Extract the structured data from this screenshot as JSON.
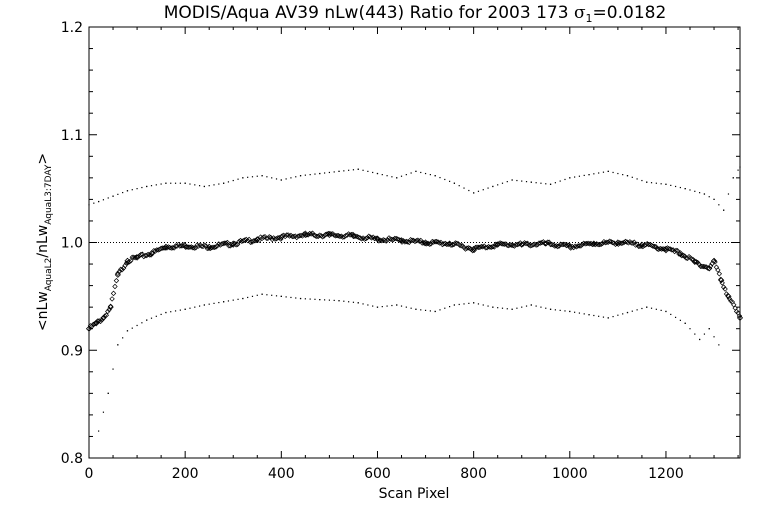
{
  "chart_data": {
    "type": "scatter",
    "title": "MODIS/Aqua AV39 nLw(443) Ratio for 2003 173 σ₁=0.0182",
    "title_parts": {
      "prefix": "MODIS/Aqua AV39 nLw(443) Ratio for 2003 173 ",
      "sigma": "σ",
      "sigma_sub": "1",
      "suffix": "=0.0182"
    },
    "xlabel": "Scan Pixel",
    "ylabel": "<nLw AquaL2/nLw AquaL3:7DAY>",
    "ylabel_parts": {
      "open": "<nLw",
      "sub1": "AquaL2",
      "mid": "/nLw",
      "sub2": "AquaL3:7DAY",
      "close": ">"
    },
    "xlim": [
      0,
      1354
    ],
    "ylim": [
      0.8,
      1.2
    ],
    "x_ticks": [
      "0",
      "200",
      "400",
      "600",
      "800",
      "1000",
      "1200"
    ],
    "y_ticks": [
      "0.8",
      "0.9",
      "1.0",
      "1.1",
      "1.2"
    ],
    "reference_line": 1.0,
    "grid": false,
    "series": [
      {
        "role": "mean",
        "marker": "diamond",
        "x": [
          0,
          15,
          30,
          45,
          60,
          80,
          100,
          130,
          160,
          200,
          250,
          300,
          350,
          400,
          450,
          500,
          550,
          600,
          650,
          700,
          750,
          800,
          850,
          900,
          950,
          1000,
          1050,
          1100,
          1150,
          1200,
          1230,
          1260,
          1290,
          1300,
          1315,
          1330,
          1354
        ],
        "y": [
          0.92,
          0.925,
          0.93,
          0.94,
          0.97,
          0.983,
          0.986,
          0.99,
          0.996,
          0.997,
          0.996,
          0.999,
          1.003,
          1.005,
          1.007,
          1.007,
          1.006,
          1.003,
          1.002,
          1.0,
          0.999,
          0.994,
          0.998,
          0.998,
          0.999,
          0.996,
          0.999,
          1.0,
          0.998,
          0.994,
          0.99,
          0.982,
          0.976,
          0.983,
          0.965,
          0.95,
          0.93
        ]
      },
      {
        "role": "mean+sigma",
        "marker": "dot",
        "x": [
          0,
          20,
          50,
          80,
          120,
          160,
          200,
          240,
          280,
          320,
          360,
          400,
          440,
          480,
          520,
          560,
          600,
          640,
          680,
          720,
          760,
          800,
          840,
          880,
          920,
          960,
          1000,
          1040,
          1080,
          1120,
          1160,
          1200,
          1240,
          1280,
          1300,
          1320,
          1340,
          1354
        ],
        "y": [
          1.035,
          1.038,
          1.043,
          1.048,
          1.052,
          1.055,
          1.055,
          1.052,
          1.055,
          1.06,
          1.062,
          1.058,
          1.062,
          1.064,
          1.066,
          1.068,
          1.064,
          1.06,
          1.066,
          1.062,
          1.055,
          1.046,
          1.052,
          1.058,
          1.056,
          1.054,
          1.06,
          1.063,
          1.066,
          1.062,
          1.056,
          1.054,
          1.05,
          1.045,
          1.04,
          1.03,
          1.06,
          1.07
        ]
      },
      {
        "role": "mean-sigma",
        "marker": "dot",
        "x": [
          20,
          40,
          60,
          80,
          120,
          160,
          200,
          240,
          280,
          320,
          360,
          400,
          440,
          480,
          520,
          560,
          600,
          640,
          680,
          720,
          760,
          800,
          840,
          880,
          920,
          960,
          1000,
          1040,
          1080,
          1120,
          1160,
          1200,
          1240,
          1270,
          1290,
          1310
        ],
        "y": [
          0.825,
          0.86,
          0.905,
          0.918,
          0.928,
          0.935,
          0.938,
          0.942,
          0.945,
          0.948,
          0.952,
          0.95,
          0.948,
          0.947,
          0.946,
          0.944,
          0.94,
          0.942,
          0.938,
          0.936,
          0.942,
          0.944,
          0.94,
          0.938,
          0.942,
          0.938,
          0.936,
          0.933,
          0.93,
          0.935,
          0.94,
          0.936,
          0.925,
          0.91,
          0.92,
          0.905
        ]
      }
    ]
  }
}
